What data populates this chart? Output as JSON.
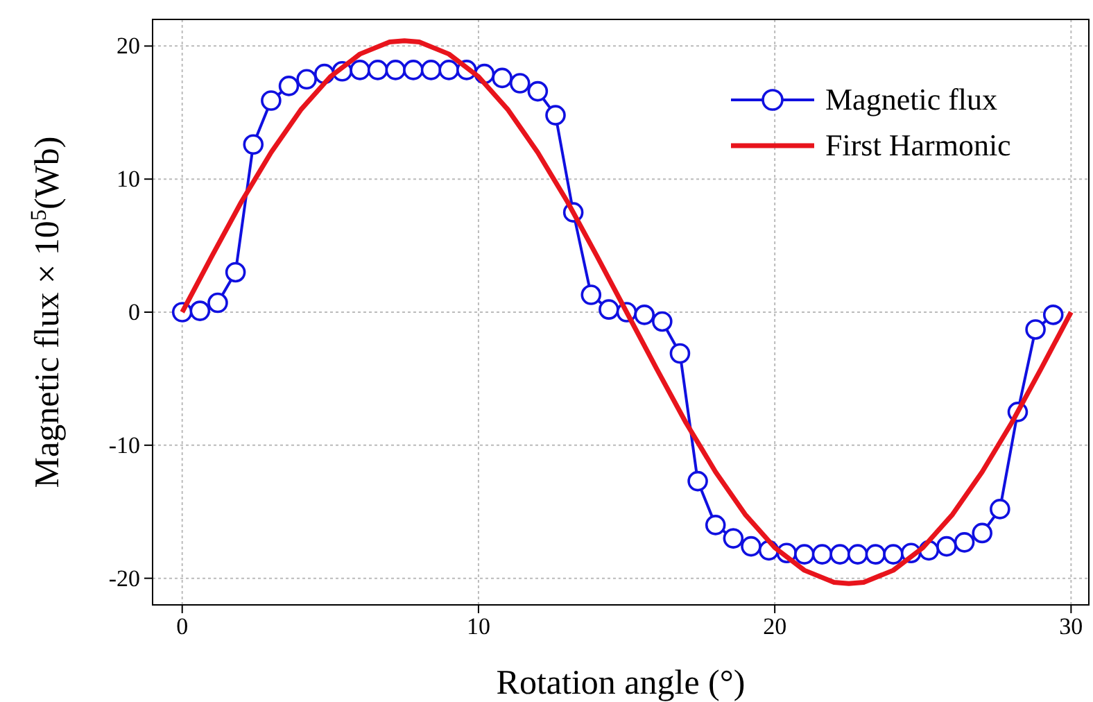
{
  "chart_data": {
    "type": "line",
    "xlabel": "Rotation angle (°)",
    "ylabel": "Magnetic flux × 10$^{5}$(Wb)",
    "xlim": [
      -1,
      30.6
    ],
    "ylim": [
      -22,
      22
    ],
    "xticks": [
      0,
      10,
      20,
      30
    ],
    "yticks": [
      -20,
      -10,
      0,
      10,
      20
    ],
    "grid": true,
    "legend": "top right",
    "series": [
      {
        "name": "Magnetic flux",
        "color": "#1010e0",
        "marker": "circle",
        "x": [
          0,
          0.6,
          1.2,
          1.8,
          2.4,
          3.0,
          3.6,
          4.2,
          4.8,
          5.4,
          6.0,
          6.6,
          7.2,
          7.8,
          8.4,
          9.0,
          9.6,
          10.2,
          10.8,
          11.4,
          12.0,
          12.6,
          13.2,
          13.8,
          14.4,
          15.0,
          15.6,
          16.2,
          16.8,
          17.4,
          18.0,
          18.6,
          19.2,
          19.8,
          20.4,
          21.0,
          21.6,
          22.2,
          22.8,
          23.4,
          24.0,
          24.6,
          25.2,
          25.8,
          26.4,
          27.0,
          27.6,
          28.2,
          28.8,
          29.4
        ],
        "values": [
          0,
          0.1,
          0.7,
          3,
          12.6,
          15.9,
          17,
          17.5,
          17.9,
          18.1,
          18.2,
          18.2,
          18.2,
          18.2,
          18.2,
          18.2,
          18.2,
          17.9,
          17.6,
          17.2,
          16.6,
          14.8,
          7.5,
          1.3,
          0.2,
          0,
          -0.2,
          -0.7,
          -3.1,
          -12.7,
          -16,
          -17,
          -17.6,
          -17.9,
          -18.1,
          -18.2,
          -18.2,
          -18.2,
          -18.2,
          -18.2,
          -18.2,
          -18.1,
          -17.9,
          -17.6,
          -17.3,
          -16.6,
          -14.8,
          -7.5,
          -1.3,
          -0.2
        ]
      },
      {
        "name": "First Harmonic",
        "color": "#e8141c",
        "marker": "none",
        "x": [
          0,
          1,
          2,
          3,
          4,
          5,
          6,
          7,
          7.5,
          8,
          9,
          10,
          11,
          12,
          13,
          14,
          15,
          16,
          17,
          18,
          19,
          20,
          21,
          22,
          22.5,
          23,
          24,
          25,
          26,
          27,
          28,
          29,
          30
        ],
        "values": [
          0,
          4.2,
          8.3,
          12,
          15.2,
          17.7,
          19.4,
          20.3,
          20.4,
          20.3,
          19.4,
          17.7,
          15.2,
          12,
          8.3,
          4.2,
          0,
          -4.2,
          -8.3,
          -12,
          -15.2,
          -17.7,
          -19.4,
          -20.3,
          -20.4,
          -20.3,
          -19.4,
          -17.7,
          -15.2,
          -12,
          -8.3,
          -4.2,
          0
        ]
      }
    ]
  }
}
